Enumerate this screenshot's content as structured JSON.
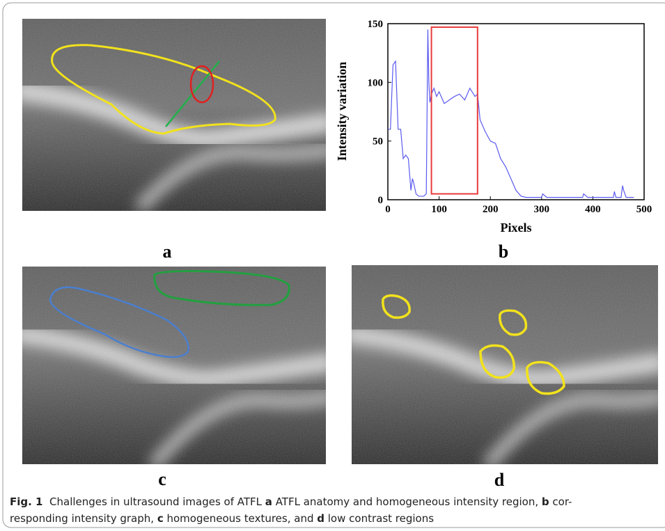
{
  "panels": {
    "a": "a",
    "b": "b",
    "c": "c",
    "d": "d"
  },
  "chart_data": {
    "type": "line",
    "xlabel": "Pixels",
    "ylabel": "Intensity variation",
    "x": [
      0,
      5,
      10,
      15,
      20,
      25,
      30,
      35,
      40,
      45,
      48,
      50,
      55,
      60,
      65,
      70,
      75,
      78,
      80,
      82,
      85,
      90,
      95,
      100,
      110,
      120,
      130,
      140,
      150,
      160,
      170,
      175,
      180,
      190,
      200,
      210,
      220,
      230,
      240,
      250,
      260,
      270,
      280,
      290,
      300,
      302,
      310,
      350,
      380,
      382,
      390,
      440,
      442,
      445,
      450,
      455,
      458,
      460,
      465,
      470,
      480
    ],
    "series": [
      {
        "color": "#5a5af0",
        "values": [
          60,
          60,
          115,
          118,
          60,
          60,
          35,
          38,
          35,
          8,
          18,
          15,
          5,
          3,
          3,
          3,
          5,
          145,
          100,
          83,
          90,
          95,
          88,
          92,
          82,
          85,
          88,
          90,
          85,
          95,
          88,
          90,
          68,
          58,
          50,
          48,
          35,
          28,
          18,
          8,
          3,
          2,
          2,
          2,
          2,
          5,
          2,
          2,
          2,
          5,
          2,
          2,
          7,
          2,
          2,
          2,
          12,
          8,
          2,
          2,
          2
        ]
      }
    ],
    "xlim": [
      0,
      500
    ],
    "xticks": [
      0,
      100,
      200,
      300,
      400,
      500
    ],
    "ylim": [
      0,
      150
    ],
    "yticks": [
      0,
      50,
      100,
      150
    ],
    "highlight": {
      "x": [
        85,
        175
      ],
      "y": [
        5,
        147
      ],
      "color": "#e83a3a"
    }
  },
  "caption": {
    "lines": [
      [
        {
          "text": "Fig. 1",
          "bold": true
        },
        {
          "text": "  Challenges in ultrasound images of ATFL ",
          "bold": false
        },
        {
          "text": "a",
          "bold": true
        },
        {
          "text": " ATFL anatomy and homogeneous intensity region, ",
          "bold": false
        },
        {
          "text": "b",
          "bold": true
        },
        {
          "text": " cor-",
          "bold": false
        }
      ],
      [
        {
          "text": "responding intensity graph, ",
          "bold": false
        },
        {
          "text": "c",
          "bold": true
        },
        {
          "text": " homogeneous textures, and ",
          "bold": false
        },
        {
          "text": "d",
          "bold": true
        },
        {
          "text": " low contrast regions",
          "bold": false
        }
      ]
    ]
  }
}
